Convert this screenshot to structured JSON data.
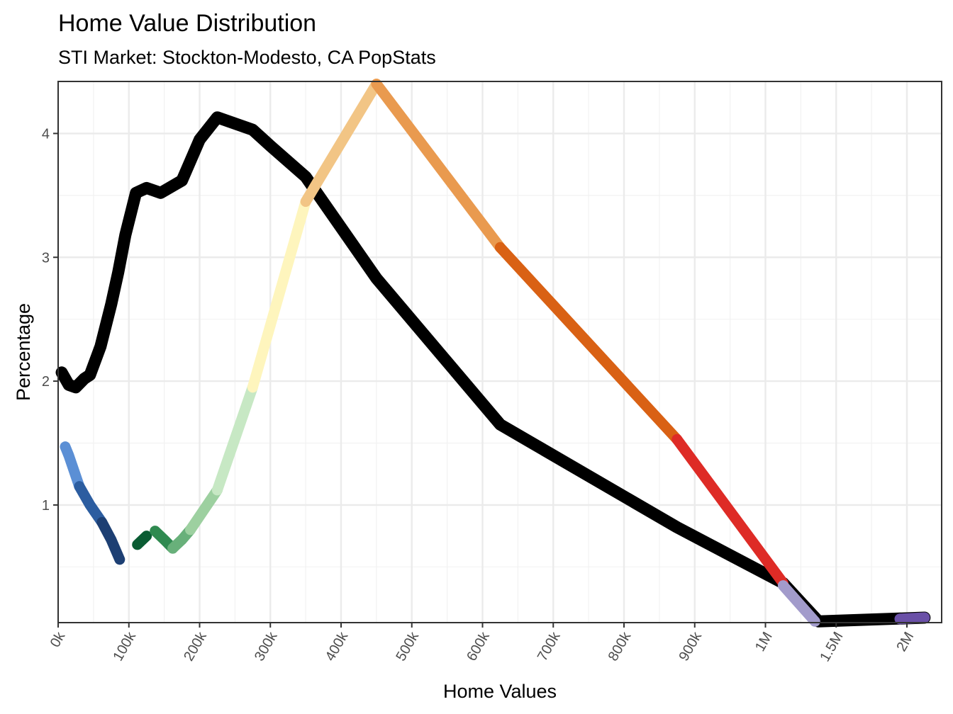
{
  "chart_data": {
    "type": "line",
    "title": "Home Value Distribution",
    "subtitle": "STI Market: Stockton-Modesto, CA PopStats",
    "xlabel": "Home Values",
    "ylabel": "Percentage",
    "x_tick_labels": [
      "0k",
      "100k",
      "200k",
      "300k",
      "400k",
      "500k",
      "600k",
      "700k",
      "800k",
      "900k",
      "1M",
      "1.5M",
      "2M"
    ],
    "y_ticks": [
      1,
      2,
      3,
      4
    ],
    "ylim": [
      0.05,
      4.42
    ],
    "grid": true,
    "series": [
      {
        "style": "black",
        "color": "#000000",
        "points": [
          [
            "5k",
            2.07
          ],
          [
            "15k",
            1.97
          ],
          [
            "25k",
            1.95
          ],
          [
            "37k",
            2.02
          ],
          [
            "45k",
            2.05
          ],
          [
            "60k",
            2.28
          ],
          [
            "75k",
            2.62
          ],
          [
            "85k",
            2.88
          ],
          [
            "95k",
            3.18
          ],
          [
            "110k",
            3.52
          ],
          [
            "125k",
            3.56
          ],
          [
            "145k",
            3.52
          ],
          [
            "175k",
            3.62
          ],
          [
            "200k",
            3.95
          ],
          [
            "225k",
            4.13
          ],
          [
            "275k",
            4.03
          ],
          [
            "300k",
            3.9
          ],
          [
            "350k",
            3.65
          ],
          [
            "450k",
            2.83
          ],
          [
            "625k",
            1.65
          ],
          [
            "875k",
            0.82
          ],
          [
            "1.125M",
            0.37
          ],
          [
            "1.375M",
            0.06
          ],
          [
            "2.125M",
            0.09
          ]
        ]
      },
      {
        "style": "colored",
        "segments": [
          {
            "color": "#5B8FD5",
            "points": [
              [
                "10k",
                1.47
              ],
              [
                "15k",
                1.4
              ],
              [
                "30k",
                1.15
              ]
            ]
          },
          {
            "color": "#2C5DA0",
            "points": [
              [
                "30k",
                1.15
              ],
              [
                "45k",
                1.0
              ],
              [
                "62k",
                0.86
              ]
            ]
          },
          {
            "color": "#1D3F73",
            "points": [
              [
                "62k",
                0.86
              ],
              [
                "75k",
                0.72
              ],
              [
                "87k",
                0.56
              ]
            ]
          },
          {
            "color": "#0A5C33",
            "points": [
              [
                "112k",
                0.68
              ],
              [
                "125k",
                0.75
              ]
            ]
          },
          {
            "color": "#2F8A50",
            "points": [
              [
                "137k",
                0.79
              ],
              [
                "150k",
                0.72
              ],
              [
                "162k",
                0.65
              ]
            ]
          },
          {
            "color": "#68B07A",
            "points": [
              [
                "162k",
                0.65
              ],
              [
                "175k",
                0.72
              ],
              [
                "187k",
                0.8
              ]
            ]
          },
          {
            "color": "#9DD0A0",
            "points": [
              [
                "187k",
                0.8
              ],
              [
                "225k",
                1.12
              ]
            ]
          },
          {
            "color": "#C7E8C4",
            "points": [
              [
                "225k",
                1.12
              ],
              [
                "275k",
                1.95
              ]
            ]
          },
          {
            "color": "#FEF5BD",
            "points": [
              [
                "275k",
                1.95
              ],
              [
                "350k",
                3.45
              ]
            ]
          },
          {
            "color": "#F2C585",
            "points": [
              [
                "350k",
                3.45
              ],
              [
                "450k",
                4.4
              ]
            ]
          },
          {
            "color": "#E99A4F",
            "points": [
              [
                "450k",
                4.4
              ],
              [
                "625k",
                3.08
              ]
            ]
          },
          {
            "color": "#D96114",
            "points": [
              [
                "625k",
                3.08
              ],
              [
                "875k",
                1.53
              ]
            ]
          },
          {
            "color": "#DE2B26",
            "points": [
              [
                "875k",
                1.53
              ],
              [
                "1.125M",
                0.37
              ]
            ]
          },
          {
            "color": "#A29BCB",
            "points": [
              [
                "1.125M",
                0.35
              ],
              [
                "1.35M",
                0.06
              ]
            ]
          },
          {
            "color": "#6A50A7",
            "points": [
              [
                "1.95M",
                0.08
              ],
              [
                "2.125M",
                0.09
              ]
            ]
          }
        ]
      }
    ]
  }
}
